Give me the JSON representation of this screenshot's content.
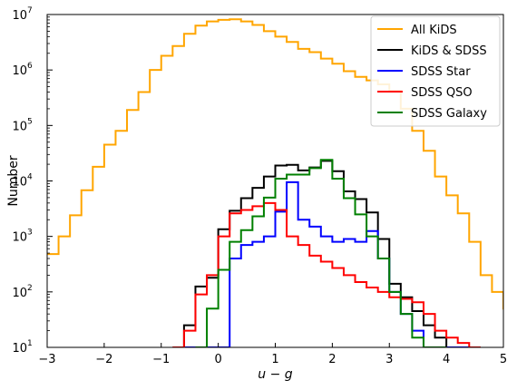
{
  "chart_data": {
    "type": "line",
    "step": true,
    "xlabel": "u − g",
    "ylabel": "Number",
    "xlim": [
      -3,
      5
    ],
    "ylim": [
      10,
      10000000
    ],
    "yscale": "log",
    "legend_position": "upper right",
    "x_ticks": [
      {
        "v": -3,
        "label": "−3"
      },
      {
        "v": -2,
        "label": "−2"
      },
      {
        "v": -1,
        "label": "−1"
      },
      {
        "v": 0,
        "label": "0"
      },
      {
        "v": 1,
        "label": "1"
      },
      {
        "v": 2,
        "label": "2"
      },
      {
        "v": 3,
        "label": "3"
      },
      {
        "v": 4,
        "label": "4"
      },
      {
        "v": 5,
        "label": "5"
      }
    ],
    "y_ticks": [
      {
        "v": 10,
        "label": "10",
        "exp": "1"
      },
      {
        "v": 100,
        "label": "10",
        "exp": "2"
      },
      {
        "v": 1000,
        "label": "10",
        "exp": "3"
      },
      {
        "v": 10000,
        "label": "10",
        "exp": "4"
      },
      {
        "v": 100000,
        "label": "10",
        "exp": "5"
      },
      {
        "v": 1000000,
        "label": "10",
        "exp": "6"
      },
      {
        "v": 10000000,
        "label": "10",
        "exp": "7"
      }
    ],
    "series": [
      {
        "name": "All KiDS",
        "color": "#FFA500",
        "x": [
          -3.0,
          -2.8,
          -2.6,
          -2.4,
          -2.2,
          -2.0,
          -1.8,
          -1.6,
          -1.4,
          -1.2,
          -1.0,
          -0.8,
          -0.6,
          -0.4,
          -0.2,
          0.0,
          0.2,
          0.4,
          0.6,
          0.8,
          1.0,
          1.2,
          1.4,
          1.6,
          1.8,
          2.0,
          2.2,
          2.4,
          2.6,
          2.8,
          3.0,
          3.2,
          3.4,
          3.6,
          3.8,
          4.0,
          4.2,
          4.4,
          4.6,
          4.8,
          5.0
        ],
        "y": [
          480,
          1000,
          2400,
          6800,
          18000,
          45000,
          80000,
          190000,
          400000,
          1000000,
          1800000,
          2700000,
          4500000,
          6300000,
          7500000,
          8000000,
          8200000,
          7500000,
          6500000,
          5000000,
          4000000,
          3200000,
          2400000,
          2100000,
          1600000,
          1300000,
          950000,
          750000,
          650000,
          550000,
          420000,
          200000,
          80000,
          35000,
          12000,
          5500,
          2600,
          800,
          200,
          100,
          50
        ]
      },
      {
        "name": "KiDS & SDSS",
        "color": "#000000",
        "x": [
          -0.8,
          -0.6,
          -0.4,
          -0.2,
          0.0,
          0.2,
          0.4,
          0.6,
          0.8,
          1.0,
          1.2,
          1.4,
          1.6,
          1.8,
          2.0,
          2.2,
          2.4,
          2.6,
          2.8,
          3.0,
          3.2,
          3.4,
          3.6,
          3.8,
          4.0,
          4.2,
          4.4
        ],
        "y": [
          10,
          25,
          125,
          180,
          1350,
          2900,
          4900,
          7500,
          12000,
          19000,
          19500,
          15500,
          17500,
          23000,
          15000,
          6500,
          4700,
          2700,
          900,
          140,
          80,
          45,
          25,
          15,
          10,
          10,
          10
        ]
      },
      {
        "name": "SDSS Star",
        "color": "#0000FF",
        "x": [
          -0.6,
          -0.4,
          -0.2,
          0.0,
          0.2,
          0.4,
          0.6,
          0.8,
          1.0,
          1.2,
          1.4,
          1.6,
          1.8,
          2.0,
          2.2,
          2.4,
          2.6,
          2.8,
          3.0,
          3.2,
          3.4,
          3.6,
          3.8,
          4.0,
          4.2
        ],
        "y": [
          10,
          10,
          10,
          10,
          400,
          700,
          800,
          1000,
          2800,
          9500,
          2000,
          1500,
          1000,
          800,
          900,
          800,
          1250,
          400,
          100,
          40,
          20,
          10,
          10,
          10,
          10
        ]
      },
      {
        "name": "SDSS QSO",
        "color": "#FF0000",
        "x": [
          -0.8,
          -0.6,
          -0.4,
          -0.2,
          0.0,
          0.2,
          0.4,
          0.6,
          0.8,
          1.0,
          1.2,
          1.4,
          1.6,
          1.8,
          2.0,
          2.2,
          2.4,
          2.6,
          2.8,
          3.0,
          3.2,
          3.4,
          3.6,
          3.8,
          4.0,
          4.2,
          4.4
        ],
        "y": [
          10,
          20,
          90,
          200,
          1000,
          2600,
          3000,
          3500,
          4000,
          3000,
          1000,
          700,
          450,
          350,
          270,
          200,
          150,
          120,
          100,
          80,
          75,
          65,
          40,
          20,
          15,
          12,
          10
        ]
      },
      {
        "name": "SDSS Galaxy",
        "color": "#008000",
        "x": [
          -0.4,
          -0.2,
          0.0,
          0.2,
          0.4,
          0.6,
          0.8,
          1.0,
          1.2,
          1.4,
          1.6,
          1.8,
          2.0,
          2.2,
          2.4,
          2.6,
          2.8,
          3.0,
          3.2,
          3.4,
          3.6,
          3.8
        ],
        "y": [
          10,
          50,
          250,
          800,
          1300,
          2300,
          5000,
          11000,
          13000,
          13000,
          17000,
          24000,
          11000,
          4900,
          2500,
          1000,
          400,
          100,
          40,
          15,
          10,
          10
        ]
      }
    ]
  }
}
